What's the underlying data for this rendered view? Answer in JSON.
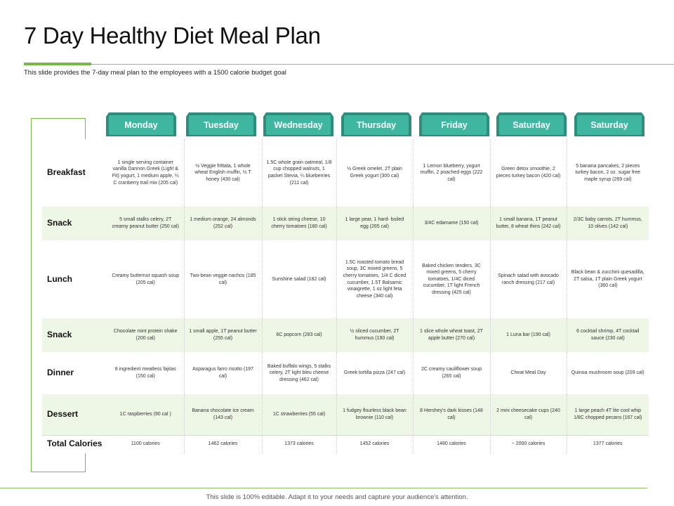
{
  "title": "7 Day Healthy Diet Meal Plan",
  "subtitle": "This slide provides the 7-day meal plan to the employees with a 1500 calorie budget goal",
  "days": [
    "Monday",
    "Tuesday",
    "Wednesday",
    "Thursday",
    "Friday",
    "Saturday",
    "Saturday"
  ],
  "rows": [
    {
      "label": "Breakfast",
      "cells": [
        "1 single serving container vanilla Dannon Greek (Light & Fit) yogurt, 1 medium apple, ¼ C cranberry trail mix (205 cal)",
        "½ Veggie frittata, 1 whole wheat English muffin, ½ T honey (430 cal)",
        "1.5C whole grain oatmeal, 1/8 cup chopped walnuts, 1 packet Stevia, ¼ blueberries (211 cal)",
        "½ Greek omelet, 2T plain Greek yogurt (300 cal)",
        "1 Lemon blueberry, yogurt muffin, 2 poached eggs (222 cal)",
        "Green detox smoothie, 2 pieces turkey bacon (420 cal)",
        "5 banana pancakes, 2 pieces turkey bacon, 2 oz. sugar free maple syrup (269 cal)"
      ]
    },
    {
      "label": "Snack",
      "cells": [
        "5 small stalks celery, 2T creamy peanut butter (250 cal)",
        "1 medium orange, 24 almonds (252 cal)",
        "1 stick string cheese, 10 cherry tomatoes (180 cal)",
        "1 large pear, 1 hard- boiled egg (265 cal)",
        "3/4C edamame (150 cal)",
        "1 small banana, 1T peanut butter, 8 wheat thins (242 cal)",
        "2/3C baby carrots, 2T hummus, 10 olives (142 cal)"
      ]
    },
    {
      "label": "Lunch",
      "cells": [
        "Creamy butternut squash soup (205 cal)",
        "Two-bean veggie nachos (185 cal)",
        "Sunshine salad (182 cal)",
        "1.5C roasted tomato bread soup, 3C mixed greens, 5 cherry tomatoes, 1/4 C diced cucumber, 1.5T Balsamic vinaigrette, 1 oz light feta cheese (340 cal)",
        "Baked chicken tenders, 3C mixed greens, 5 cherry tomatoes, 1/4C diced cucumber, 1T light French dressing (425 cal)",
        "Spinach salad with avocado ranch dressing (217 cal)",
        "Black bean & zucchini quesadilla, 2T salsa, 1T plain Greek yogurt (360 cal)"
      ]
    },
    {
      "label": "Snack",
      "cells": [
        "Chocolate mint protein shake (200 cal)",
        "1 small apple, 1T peanut butter (255 cal)",
        "6C popcorn (283 cal)",
        "½ sliced cucumber, 2T hummus (190 cal)",
        "1 slice whole wheat toast, 2T apple butter (270 cal)",
        "1 Luna bar (190 cal)",
        "6 cocktail shrimp, 4T cocktail sauce (230 cal)"
      ]
    },
    {
      "label": "Dinner",
      "cells": [
        "8 ingredient meatless fajitas (150 cal)",
        "Asparagus farro risotto (197 cal)",
        "Baked buffalo wings, 5 stalks celery, 2T light bleu cheese dressing (462 cal)",
        "Greek tortilla pizza (247 cal)",
        "2C creamy cauliflower soup (265 cal)",
        "Cheat Meal Day",
        "Quinoa mushroom soup (209 cal)"
      ]
    },
    {
      "label": "Dessert",
      "cells": [
        "1C raspberries (90 cal )",
        "Banana chocolate ice cream (143 cal)",
        "1C strawberries (55 cal)",
        "1 fudgey flourless black bean brownie (110 cal)",
        "8 Hershey's dark kisses (148 cal)",
        "2 mini cheesecake cups (240 cal)",
        "1 large peach 4T lite cool whip 1/8C chopped pecans (167 cal)"
      ]
    }
  ],
  "totals": {
    "label": "Total Calories",
    "cells": [
      "1100 calories",
      "1462 calories",
      "1373 calories",
      "1452 calories",
      "1480 calories",
      "~ 2000 calories",
      "1377 calories"
    ]
  },
  "footer": "This slide is 100% editable. Adapt it to your needs and capture your audience's attention.",
  "colors": {
    "accent_green": "#7ab648",
    "row_tint": "#eef6e6",
    "day_tab": "#3fb6a0",
    "day_tab_shadow": "#2f8d7e"
  }
}
